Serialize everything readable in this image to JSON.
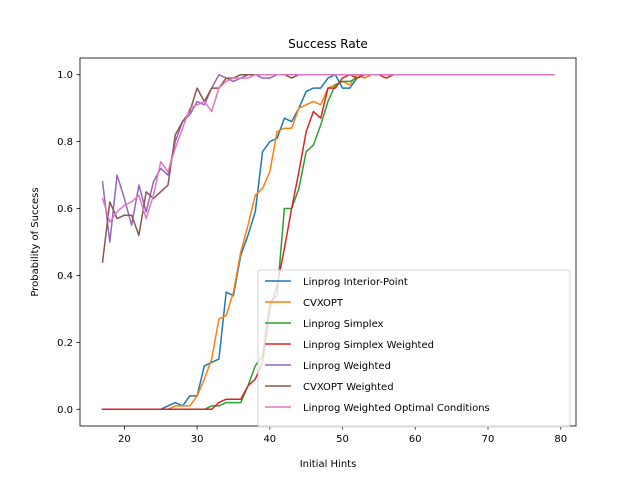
{
  "chart_data": {
    "type": "line",
    "title": "Success Rate",
    "xlabel": "Initial Hints",
    "ylabel": "Probability of Success",
    "xlim": [
      13.9,
      82.1
    ],
    "ylim": [
      -0.05,
      1.05
    ],
    "xticks": [
      20,
      30,
      40,
      50,
      60,
      70,
      80
    ],
    "yticks": [
      0.0,
      0.2,
      0.4,
      0.6,
      0.8,
      1.0
    ],
    "grid": false,
    "legend_position": "lower-right",
    "series": [
      {
        "name": "Linprog Interior-Point",
        "color": "#1f77b4",
        "x": [
          17,
          18,
          19,
          20,
          21,
          22,
          23,
          24,
          25,
          26,
          27,
          28,
          29,
          30,
          31,
          32,
          33,
          34,
          35,
          36,
          37,
          38,
          39,
          40,
          41,
          42,
          43,
          44,
          45,
          46,
          47,
          48,
          49,
          50,
          51,
          52,
          53,
          54,
          55,
          56,
          57,
          58,
          59,
          60,
          65,
          70,
          75,
          79
        ],
        "y": [
          0,
          0,
          0,
          0,
          0,
          0,
          0,
          0,
          0,
          0.01,
          0.02,
          0.01,
          0.04,
          0.04,
          0.13,
          0.14,
          0.15,
          0.35,
          0.34,
          0.46,
          0.52,
          0.59,
          0.77,
          0.8,
          0.81,
          0.87,
          0.86,
          0.9,
          0.95,
          0.96,
          0.96,
          0.99,
          1.0,
          0.96,
          0.96,
          0.99,
          1.0,
          1.0,
          1.0,
          1.0,
          1.0,
          1.0,
          1.0,
          1.0,
          1.0,
          1.0,
          1.0,
          1.0
        ]
      },
      {
        "name": "CVXOPT",
        "color": "#ff7f0e",
        "x": [
          17,
          18,
          19,
          20,
          21,
          22,
          23,
          24,
          25,
          26,
          27,
          28,
          29,
          30,
          31,
          32,
          33,
          34,
          35,
          36,
          37,
          38,
          39,
          40,
          41,
          42,
          43,
          44,
          45,
          46,
          47,
          48,
          49,
          50,
          51,
          52,
          53,
          54,
          55,
          56,
          57,
          58,
          59,
          60,
          65,
          70,
          75,
          79
        ],
        "y": [
          0,
          0,
          0,
          0,
          0,
          0,
          0,
          0,
          0,
          0,
          0.01,
          0.01,
          0.01,
          0.04,
          0.09,
          0.15,
          0.27,
          0.28,
          0.35,
          0.47,
          0.55,
          0.64,
          0.66,
          0.71,
          0.83,
          0.84,
          0.84,
          0.9,
          0.91,
          0.92,
          0.91,
          0.96,
          0.97,
          0.98,
          0.97,
          1.0,
          0.99,
          1.0,
          1.0,
          1.0,
          1.0,
          1.0,
          1.0,
          1.0,
          1.0,
          1.0,
          1.0,
          1.0
        ]
      },
      {
        "name": "Linprog Simplex",
        "color": "#2ca02c",
        "x": [
          17,
          18,
          19,
          20,
          21,
          22,
          23,
          24,
          25,
          26,
          27,
          28,
          29,
          30,
          31,
          32,
          33,
          34,
          35,
          36,
          37,
          38,
          39,
          40,
          41,
          42,
          43,
          44,
          45,
          46,
          47,
          48,
          49,
          50,
          51,
          52,
          53,
          54,
          55,
          56,
          57,
          58,
          59,
          60,
          65,
          70,
          75,
          79
        ],
        "y": [
          0,
          0,
          0,
          0,
          0,
          0,
          0,
          0,
          0,
          0,
          0,
          0,
          0,
          0,
          0,
          0.01,
          0.01,
          0.02,
          0.02,
          0.02,
          0.07,
          0.13,
          0.16,
          0.32,
          0.34,
          0.6,
          0.6,
          0.66,
          0.77,
          0.79,
          0.85,
          0.92,
          0.97,
          0.98,
          0.98,
          0.99,
          1.0,
          1.0,
          1.0,
          1.0,
          1.0,
          1.0,
          1.0,
          1.0,
          1.0,
          1.0,
          1.0,
          1.0
        ]
      },
      {
        "name": "Linprog Simplex Weighted",
        "color": "#d62728",
        "x": [
          17,
          18,
          19,
          20,
          21,
          22,
          23,
          24,
          25,
          26,
          27,
          28,
          29,
          30,
          31,
          32,
          33,
          34,
          35,
          36,
          37,
          38,
          39,
          40,
          41,
          42,
          43,
          44,
          45,
          46,
          47,
          48,
          49,
          50,
          51,
          52,
          53,
          54,
          55,
          56,
          57,
          58,
          59,
          60,
          65,
          70,
          75,
          79
        ],
        "y": [
          0,
          0,
          0,
          0,
          0,
          0,
          0,
          0,
          0,
          0,
          0,
          0,
          0,
          0,
          0,
          0,
          0.02,
          0.03,
          0.03,
          0.03,
          0.07,
          0.09,
          0.14,
          0.3,
          0.37,
          0.48,
          0.6,
          0.71,
          0.83,
          0.89,
          0.87,
          0.96,
          0.96,
          0.99,
          1.0,
          0.99,
          1.0,
          1.0,
          1.0,
          0.99,
          1.0,
          1.0,
          1.0,
          1.0,
          1.0,
          1.0,
          1.0,
          1.0
        ]
      },
      {
        "name": "Linprog Weighted",
        "color": "#9467bd",
        "x": [
          17,
          18,
          19,
          20,
          21,
          22,
          23,
          24,
          25,
          26,
          27,
          28,
          29,
          30,
          31,
          32,
          33,
          34,
          35,
          36,
          37,
          38,
          39,
          40,
          41,
          42,
          43,
          44,
          45,
          46,
          47,
          48,
          49,
          50,
          55,
          60,
          65,
          70,
          75,
          79
        ],
        "y": [
          0.68,
          0.5,
          0.7,
          0.63,
          0.55,
          0.67,
          0.59,
          0.68,
          0.72,
          0.7,
          0.8,
          0.86,
          0.88,
          0.92,
          0.91,
          0.96,
          1.0,
          0.99,
          0.98,
          0.99,
          1.0,
          1.0,
          0.99,
          0.99,
          1.0,
          1.0,
          1.0,
          1.0,
          1.0,
          1.0,
          1.0,
          1.0,
          1.0,
          1.0,
          1.0,
          1.0,
          1.0,
          1.0,
          1.0,
          1.0
        ]
      },
      {
        "name": "CVXOPT Weighted",
        "color": "#8c564b",
        "x": [
          17,
          18,
          19,
          20,
          21,
          22,
          23,
          24,
          25,
          26,
          27,
          28,
          29,
          30,
          31,
          32,
          33,
          34,
          35,
          36,
          37,
          38,
          39,
          40,
          41,
          42,
          43,
          44,
          45,
          46,
          47,
          48,
          49,
          50,
          55,
          60,
          65,
          70,
          75,
          79
        ],
        "y": [
          0.44,
          0.62,
          0.57,
          0.58,
          0.58,
          0.52,
          0.65,
          0.63,
          0.65,
          0.67,
          0.82,
          0.86,
          0.89,
          0.96,
          0.92,
          0.96,
          0.96,
          0.99,
          0.99,
          1.0,
          1.0,
          1.0,
          1.0,
          1.0,
          1.0,
          1.0,
          0.99,
          1.0,
          1.0,
          1.0,
          1.0,
          1.0,
          1.0,
          1.0,
          1.0,
          1.0,
          1.0,
          1.0,
          1.0,
          1.0
        ]
      },
      {
        "name": "Linprog Weighted Optimal Conditions",
        "color": "#e377c2",
        "x": [
          17,
          18,
          19,
          20,
          21,
          22,
          23,
          24,
          25,
          26,
          27,
          28,
          29,
          30,
          31,
          32,
          33,
          34,
          35,
          36,
          37,
          38,
          39,
          40,
          41,
          42,
          43,
          44,
          45,
          46,
          47,
          48,
          49,
          50,
          55,
          60,
          65,
          70,
          75,
          79
        ],
        "y": [
          0.63,
          0.56,
          0.59,
          0.61,
          0.62,
          0.64,
          0.57,
          0.64,
          0.74,
          0.71,
          0.78,
          0.84,
          0.9,
          0.91,
          0.92,
          0.89,
          0.96,
          0.98,
          0.99,
          0.99,
          0.99,
          1.0,
          1.0,
          1.0,
          1.0,
          1.0,
          1.0,
          1.0,
          1.0,
          1.0,
          1.0,
          1.0,
          1.0,
          1.0,
          1.0,
          1.0,
          1.0,
          1.0,
          1.0,
          1.0
        ]
      }
    ]
  }
}
